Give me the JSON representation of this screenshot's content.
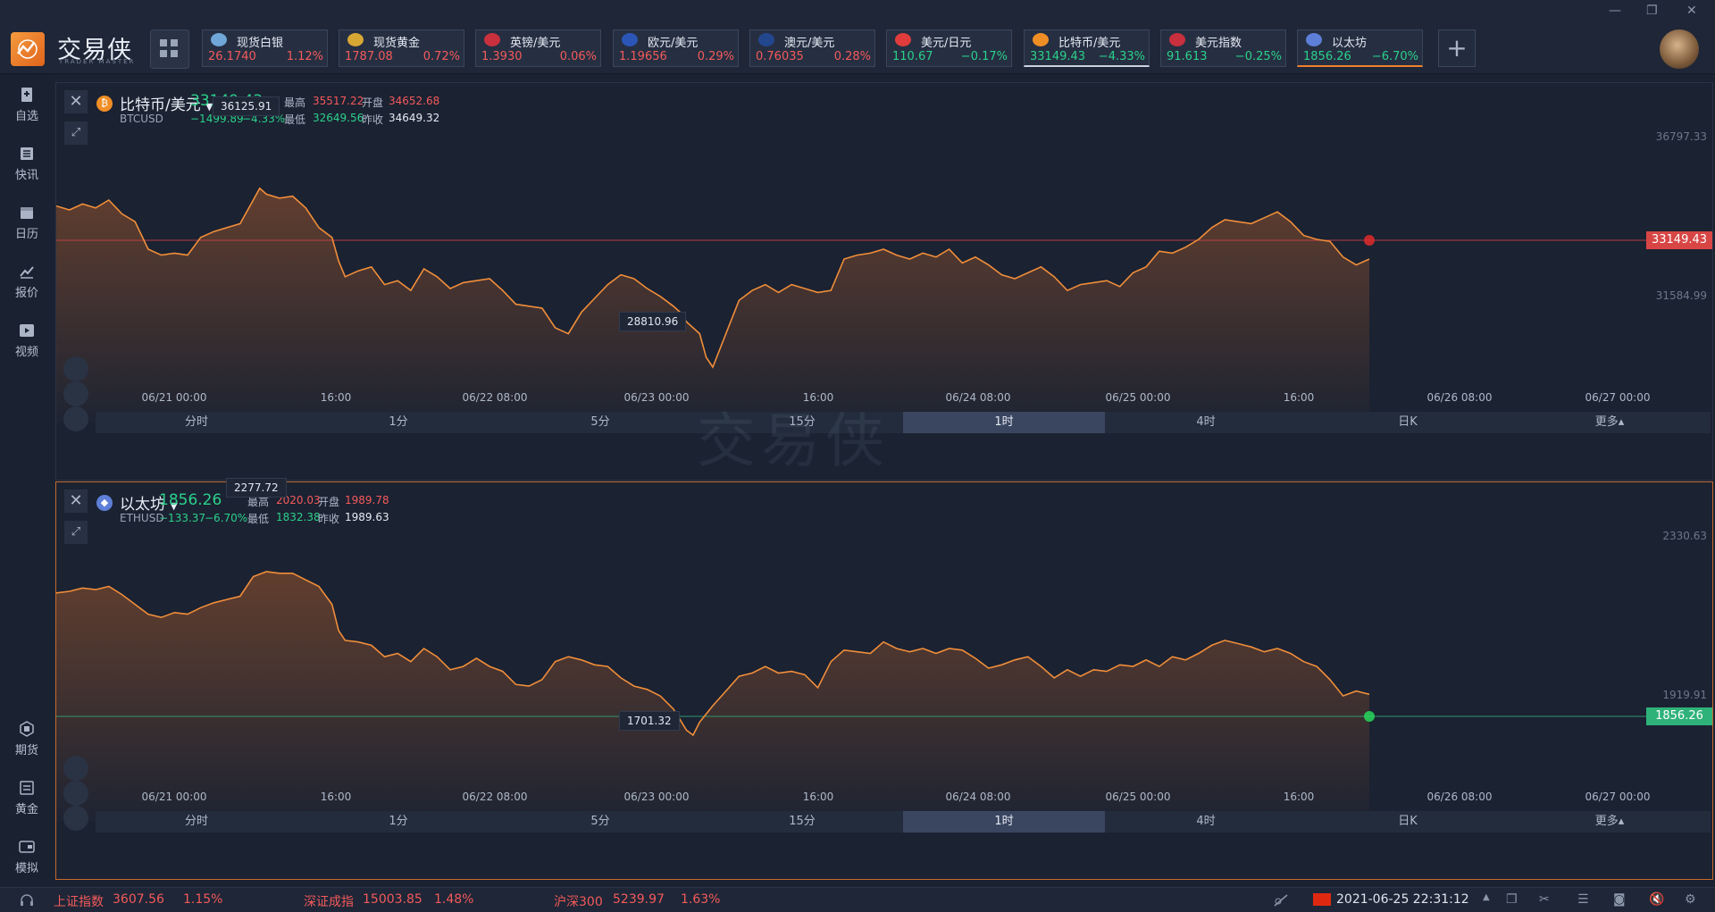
{
  "brand": {
    "name": "交易侠",
    "sub": "TRADER MASTER"
  },
  "tickers": [
    {
      "name": "现货白银",
      "price": "26.1740",
      "change": "1.12%",
      "dir": "up",
      "color": "#6fa7d8"
    },
    {
      "name": "现货黄金",
      "price": "1787.08",
      "change": "0.72%",
      "dir": "up",
      "color": "#d7a733"
    },
    {
      "name": "英镑/美元",
      "price": "1.3930",
      "change": "0.06%",
      "dir": "up",
      "color": "#c9303e"
    },
    {
      "name": "欧元/美元",
      "price": "1.19656",
      "change": "0.29%",
      "dir": "up",
      "color": "#2b56b8"
    },
    {
      "name": "澳元/美元",
      "price": "0.76035",
      "change": "0.28%",
      "dir": "up",
      "color": "#23478f"
    },
    {
      "name": "美元/日元",
      "price": "110.67",
      "change": "−0.17%",
      "dir": "down",
      "color": "#e03c3c"
    },
    {
      "name": "比特币/美元",
      "price": "33149.43",
      "change": "−4.33%",
      "dir": "down",
      "color": "#f08e26"
    },
    {
      "name": "美元指数",
      "price": "91.613",
      "change": "−0.25%",
      "dir": "down",
      "color": "#c9303e"
    },
    {
      "name": "以太坊",
      "price": "1856.26",
      "change": "−6.70%",
      "dir": "down",
      "color": "#5e7fd8"
    }
  ],
  "sidebar": {
    "items": [
      {
        "label": "自选",
        "icon": "bookmark-icon"
      },
      {
        "label": "快讯",
        "icon": "news-icon"
      },
      {
        "label": "日历",
        "icon": "calendar-icon"
      },
      {
        "label": "报价",
        "icon": "quote-chart-icon"
      },
      {
        "label": "视频",
        "icon": "video-icon"
      },
      {
        "label": "期货",
        "icon": "futures-icon"
      },
      {
        "label": "黄金",
        "icon": "gold-icon"
      },
      {
        "label": "模拟",
        "icon": "simulation-icon"
      }
    ]
  },
  "watermark": "交易侠",
  "panels": [
    {
      "name": "比特币/美元",
      "code": "BTCUSD",
      "price": "33149.43",
      "change_abs": "−1499.89",
      "change_pct": "−4.33%",
      "high_label": "最高",
      "high": "35517.22",
      "open_label": "开盘",
      "open": "34652.68",
      "low_label": "最低",
      "low": "32649.56",
      "prev_label": "昨收",
      "prev": "34649.32",
      "axis_top": "36797.33",
      "axis_mid": "31584.99",
      "tag": "33149.43",
      "max_callout": "36125.91",
      "min_callout": "28810.96",
      "xlabels": [
        "06/21 00:00",
        "16:00",
        "06/22 08:00",
        "06/23 00:00",
        "16:00",
        "06/24 08:00",
        "06/25 00:00",
        "16:00",
        "06/26 08:00",
        "06/27 00:00"
      ],
      "timeframes": [
        "分时",
        "1分",
        "5分",
        "15分",
        "1时",
        "4时",
        "日K",
        "更多▴"
      ],
      "selected": 4
    },
    {
      "name": "以太坊",
      "code": "ETHUSD",
      "price": "1856.26",
      "change_abs": "−133.37",
      "change_pct": "−6.70%",
      "high_label": "最高",
      "high": "2020.03",
      "open_label": "开盘",
      "open": "1989.78",
      "low_label": "最低",
      "low": "1832.38",
      "prev_label": "昨收",
      "prev": "1989.63",
      "axis_top": "2330.63",
      "axis_mid": "1919.91",
      "tag": "1856.26",
      "max_callout": "2277.72",
      "min_callout": "1701.32",
      "xlabels": [
        "06/21 00:00",
        "16:00",
        "06/22 08:00",
        "06/23 00:00",
        "16:00",
        "06/24 08:00",
        "06/25 00:00",
        "16:00",
        "06/26 08:00",
        "06/27 00:00"
      ],
      "timeframes": [
        "分时",
        "1分",
        "5分",
        "15分",
        "1时",
        "4时",
        "日K",
        "更多▴"
      ],
      "selected": 4
    }
  ],
  "bottom": {
    "indices": [
      {
        "name": "上证指数",
        "value": "3607.56",
        "change": "1.15%"
      },
      {
        "name": "深证成指",
        "value": "15003.85",
        "change": "1.48%"
      },
      {
        "name": "沪深300",
        "value": "5239.97",
        "change": "1.63%"
      }
    ],
    "datetime": "2021-06-25 22:31:12"
  },
  "colors": {
    "line": "#f08e3a",
    "up": "#f35a5a",
    "down": "#2bd18a"
  }
}
